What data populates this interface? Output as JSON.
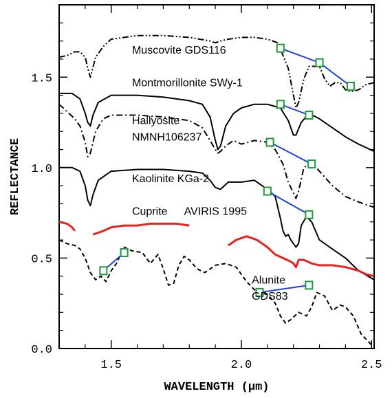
{
  "chart_data": {
    "type": "line",
    "xlabel": "WAVELENGTH (μm)",
    "ylabel": "REFLECTANCE",
    "xlim": [
      1.3,
      2.51
    ],
    "ylim": [
      0.0,
      1.9
    ],
    "xticks": [
      {
        "value": 1.5,
        "label": "1.5"
      },
      {
        "value": 2.0,
        "label": "2.0"
      },
      {
        "value": 2.5,
        "label": "2.5"
      }
    ],
    "yticks": [
      {
        "value": 0.0,
        "label": "0.0"
      },
      {
        "value": 0.5,
        "label": "0.5"
      },
      {
        "value": 1.0,
        "label": "1.0"
      },
      {
        "value": 1.5,
        "label": "1.5"
      }
    ],
    "minor_xticks": [
      1.4,
      1.6,
      1.7,
      1.8,
      1.9,
      2.1,
      2.2,
      2.3,
      2.4
    ],
    "minor_yticks": [
      0.1,
      0.2,
      0.3,
      0.4,
      0.6,
      0.7,
      0.8,
      0.9,
      1.1,
      1.2,
      1.3,
      1.4,
      1.6,
      1.7,
      1.8
    ],
    "colors": {
      "axis": "#000000",
      "cuprite": "#e8221f",
      "continuum_line": "#1f3fe0",
      "marker": "#1f9a3a"
    },
    "series": [
      {
        "id": "muscovite",
        "name": "Muscovite GDS116",
        "style": "dash-dot-dot",
        "color": "#000000",
        "label_at": [
          1.58,
          1.63
        ],
        "x": [
          1.3,
          1.33,
          1.36,
          1.38,
          1.4,
          1.41,
          1.42,
          1.44,
          1.47,
          1.5,
          1.55,
          1.6,
          1.7,
          1.8,
          1.88,
          1.9,
          1.92,
          1.95,
          2.0,
          2.05,
          2.1,
          2.14,
          2.16,
          2.18,
          2.2,
          2.21,
          2.22,
          2.24,
          2.26,
          2.28,
          2.3,
          2.32,
          2.34,
          2.36,
          2.38,
          2.4,
          2.42,
          2.45,
          2.48,
          2.51
        ],
        "y": [
          1.61,
          1.62,
          1.64,
          1.64,
          1.61,
          1.55,
          1.5,
          1.61,
          1.67,
          1.71,
          1.72,
          1.73,
          1.73,
          1.72,
          1.7,
          1.69,
          1.7,
          1.71,
          1.72,
          1.72,
          1.71,
          1.69,
          1.62,
          1.55,
          1.4,
          1.33,
          1.36,
          1.49,
          1.56,
          1.56,
          1.56,
          1.49,
          1.45,
          1.47,
          1.47,
          1.43,
          1.42,
          1.43,
          1.46,
          1.47
        ]
      },
      {
        "id": "montmorillonite",
        "name": "Montmorillonite SWy-1",
        "style": "solid",
        "color": "#000000",
        "label_at": [
          1.58,
          1.45
        ],
        "x": [
          1.3,
          1.35,
          1.38,
          1.4,
          1.41,
          1.42,
          1.43,
          1.45,
          1.5,
          1.6,
          1.7,
          1.8,
          1.85,
          1.88,
          1.9,
          1.91,
          1.92,
          1.94,
          1.97,
          2.0,
          2.05,
          2.1,
          2.15,
          2.18,
          2.2,
          2.21,
          2.23,
          2.26,
          2.3,
          2.35,
          2.4,
          2.45,
          2.51
        ],
        "y": [
          1.41,
          1.41,
          1.38,
          1.3,
          1.25,
          1.23,
          1.29,
          1.36,
          1.4,
          1.4,
          1.39,
          1.37,
          1.35,
          1.28,
          1.15,
          1.1,
          1.12,
          1.23,
          1.3,
          1.33,
          1.35,
          1.35,
          1.33,
          1.26,
          1.18,
          1.18,
          1.25,
          1.3,
          1.27,
          1.22,
          1.17,
          1.13,
          1.09
        ]
      },
      {
        "id": "hallyosite",
        "name": "Hallyosite",
        "name_line2": "NMNH106237",
        "style": "dash-dot",
        "color": "#000000",
        "label_at": [
          1.58,
          1.24
        ],
        "label2_at": [
          1.58,
          1.15
        ],
        "x": [
          1.3,
          1.33,
          1.36,
          1.38,
          1.4,
          1.41,
          1.42,
          1.44,
          1.47,
          1.5,
          1.6,
          1.7,
          1.8,
          1.85,
          1.88,
          1.9,
          1.91,
          1.92,
          1.94,
          1.97,
          2.0,
          2.05,
          2.1,
          2.13,
          2.16,
          2.18,
          2.2,
          2.21,
          2.22,
          2.24,
          2.27,
          2.3,
          2.35,
          2.4,
          2.45,
          2.51
        ],
        "y": [
          1.35,
          1.31,
          1.27,
          1.23,
          1.14,
          1.06,
          1.08,
          1.2,
          1.27,
          1.29,
          1.29,
          1.28,
          1.26,
          1.22,
          1.15,
          1.1,
          1.08,
          1.09,
          1.12,
          1.15,
          1.13,
          1.15,
          1.14,
          1.1,
          1.02,
          0.92,
          0.86,
          0.83,
          0.87,
          1.0,
          1.03,
          0.98,
          0.9,
          0.84,
          0.81,
          0.78
        ]
      },
      {
        "id": "kaolinite",
        "name": "Kaolinite KGa-2",
        "style": "solid",
        "color": "#000000",
        "label_at": [
          1.58,
          0.92
        ],
        "x": [
          1.3,
          1.35,
          1.38,
          1.4,
          1.41,
          1.42,
          1.43,
          1.45,
          1.5,
          1.6,
          1.7,
          1.8,
          1.85,
          1.88,
          1.9,
          1.92,
          1.95,
          2.0,
          2.05,
          2.1,
          2.13,
          2.15,
          2.16,
          2.17,
          2.18,
          2.19,
          2.2,
          2.21,
          2.22,
          2.23,
          2.25,
          2.27,
          2.3,
          2.35,
          2.4,
          2.45,
          2.51
        ],
        "y": [
          1.0,
          1.0,
          0.98,
          0.9,
          0.82,
          0.79,
          0.85,
          0.93,
          0.98,
          0.99,
          0.99,
          0.98,
          0.97,
          0.93,
          0.89,
          0.88,
          0.92,
          0.92,
          0.93,
          0.88,
          0.84,
          0.72,
          0.65,
          0.62,
          0.63,
          0.6,
          0.58,
          0.56,
          0.58,
          0.68,
          0.73,
          0.7,
          0.6,
          0.55,
          0.5,
          0.43,
          0.38
        ]
      },
      {
        "id": "cuprite",
        "name": "Cuprite",
        "name_right": "AVIRIS 1995",
        "style": "solid",
        "color": "#e8221f",
        "label_at": [
          1.58,
          0.74
        ],
        "label2_at": [
          1.78,
          0.74
        ],
        "segments": [
          {
            "x": [
              1.3,
              1.33,
              1.35,
              1.36
            ],
            "y": [
              0.7,
              0.69,
              0.67,
              0.65
            ]
          },
          {
            "x": [
              1.43,
              1.47,
              1.5,
              1.55,
              1.6,
              1.65,
              1.7,
              1.75,
              1.8
            ],
            "y": [
              0.63,
              0.65,
              0.67,
              0.68,
              0.68,
              0.69,
              0.69,
              0.69,
              0.68
            ]
          },
          {
            "x": [
              1.95,
              1.98,
              2.02,
              2.06,
              2.1,
              2.13,
              2.16,
              2.19,
              2.2,
              2.21,
              2.22,
              2.24,
              2.27,
              2.3,
              2.35,
              2.4,
              2.45,
              2.48,
              2.51
            ],
            "y": [
              0.57,
              0.6,
              0.62,
              0.6,
              0.56,
              0.52,
              0.5,
              0.48,
              0.47,
              0.45,
              0.49,
              0.49,
              0.47,
              0.46,
              0.46,
              0.45,
              0.43,
              0.41,
              0.4
            ]
          }
        ]
      },
      {
        "id": "alunite",
        "name": "Alunite",
        "name_line2": "GDS83",
        "style": "dashed",
        "color": "#000000",
        "label_at": [
          2.04,
          0.36
        ],
        "label2_at": [
          2.04,
          0.27
        ],
        "x": [
          1.3,
          1.33,
          1.36,
          1.38,
          1.4,
          1.42,
          1.44,
          1.46,
          1.48,
          1.5,
          1.52,
          1.55,
          1.58,
          1.62,
          1.65,
          1.68,
          1.7,
          1.72,
          1.74,
          1.76,
          1.78,
          1.8,
          1.83,
          1.86,
          1.9,
          1.94,
          1.98,
          2.02,
          2.06,
          2.1,
          2.13,
          2.15,
          2.17,
          2.19,
          2.22,
          2.25,
          2.27,
          2.29,
          2.32,
          2.35,
          2.38,
          2.4,
          2.43,
          2.46,
          2.5
        ],
        "y": [
          0.6,
          0.58,
          0.57,
          0.55,
          0.5,
          0.42,
          0.38,
          0.4,
          0.37,
          0.43,
          0.47,
          0.56,
          0.54,
          0.53,
          0.47,
          0.52,
          0.44,
          0.35,
          0.36,
          0.46,
          0.51,
          0.49,
          0.44,
          0.42,
          0.46,
          0.47,
          0.45,
          0.37,
          0.31,
          0.3,
          0.25,
          0.18,
          0.14,
          0.16,
          0.2,
          0.18,
          0.23,
          0.31,
          0.29,
          0.21,
          0.24,
          0.23,
          0.18,
          0.08,
          0.02
        ]
      }
    ],
    "continuum_lines": [
      {
        "of": "muscovite",
        "points": [
          [
            2.15,
            1.66
          ],
          [
            2.3,
            1.58
          ],
          [
            2.42,
            1.45
          ]
        ]
      },
      {
        "of": "montmorillonite",
        "points": [
          [
            2.15,
            1.35
          ],
          [
            2.26,
            1.29
          ]
        ]
      },
      {
        "of": "hallyosite",
        "points": [
          [
            2.11,
            1.14
          ],
          [
            2.27,
            1.02
          ]
        ]
      },
      {
        "of": "kaolinite",
        "points": [
          [
            2.1,
            0.87
          ],
          [
            2.26,
            0.74
          ]
        ]
      },
      {
        "of": "alunite",
        "points": [
          [
            1.47,
            0.43
          ],
          [
            1.55,
            0.53
          ]
        ]
      },
      {
        "of": "alunite",
        "points": [
          [
            2.07,
            0.31
          ],
          [
            2.26,
            0.35
          ]
        ]
      }
    ]
  }
}
